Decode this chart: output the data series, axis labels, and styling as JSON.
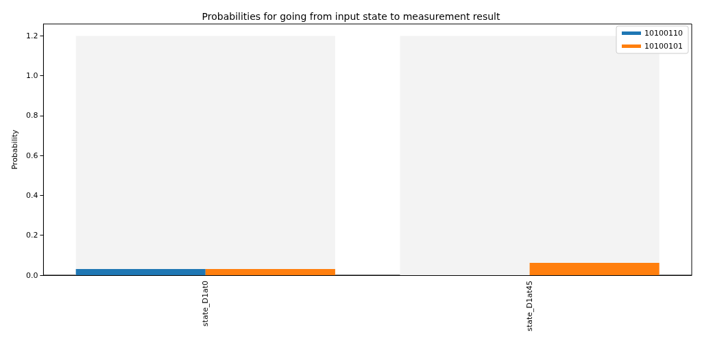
{
  "chart_data": {
    "type": "bar",
    "title": "Probabilities for going from input state to measurement result",
    "ylabel": "Probability",
    "categories": [
      "state_D1at0",
      "state_D1at45"
    ],
    "series": [
      {
        "color": "#f3f3f3",
        "values": [
          1.2,
          1.2
        ]
      },
      {
        "name": "10100110",
        "color": "#1f77b4",
        "values": [
          0.031,
          0
        ]
      },
      {
        "name": "10100101",
        "color": "#ff7f0e",
        "values": [
          0.031,
          0.062
        ]
      }
    ],
    "ylim": [
      0,
      1.26
    ],
    "yticks": [
      {
        "value": 0,
        "label": "0.0"
      },
      0.2,
      0.4,
      0.6,
      0.8,
      {
        "value": 1,
        "label": "1.0"
      },
      1.2
    ],
    "legend": "top right",
    "grid": false
  }
}
